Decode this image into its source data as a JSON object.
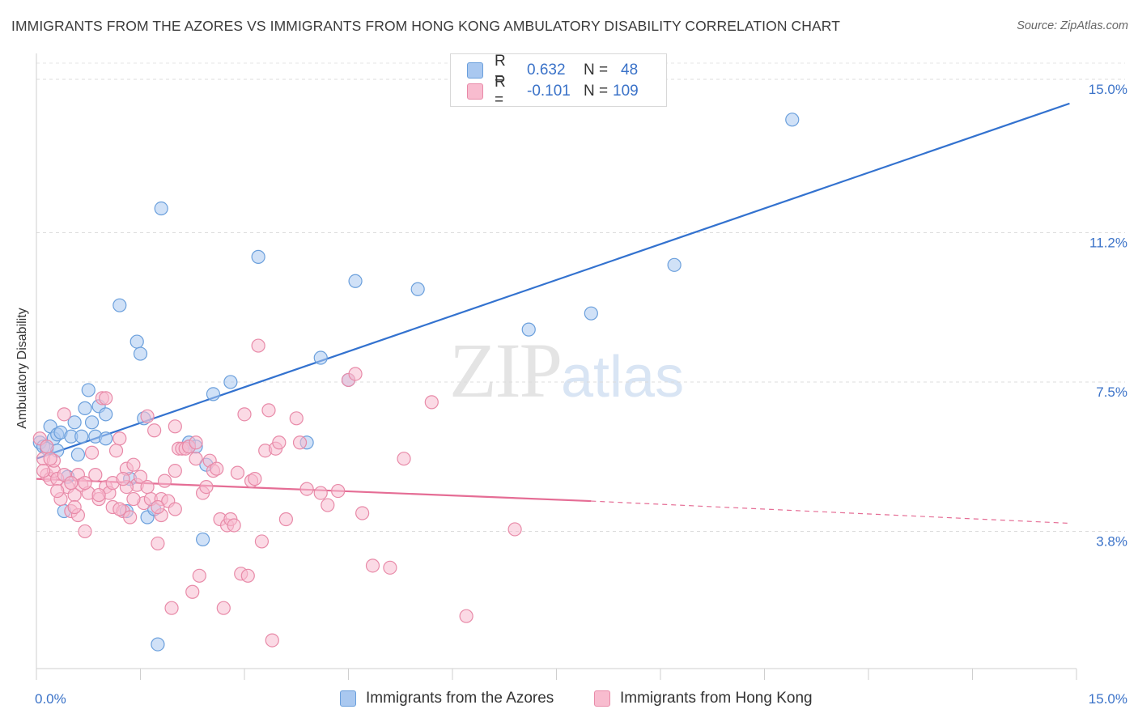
{
  "title": "IMMIGRANTS FROM THE AZORES VS IMMIGRANTS FROM HONG KONG AMBULATORY DISABILITY CORRELATION CHART",
  "source": "Source: ZipAtlas.com",
  "watermark": {
    "zip": "ZIP",
    "atlas": "atlas"
  },
  "legend": {
    "rows": [
      {
        "r_label": "R =",
        "r_value": "0.632",
        "n_label": "N =",
        "n_value": "48",
        "color": "#a9c8f0",
        "border": "#6a9fdc"
      },
      {
        "r_label": "R =",
        "r_value": "-0.101",
        "n_label": "N =",
        "n_value": "109",
        "color": "#f8bccf",
        "border": "#e88aa8"
      }
    ]
  },
  "bottom_legend": [
    {
      "label": "Immigrants from the Azores",
      "color": "#a9c8f0",
      "border": "#6a9fdc"
    },
    {
      "label": "Immigrants from Hong Kong",
      "color": "#f8bccf",
      "border": "#e88aa8"
    }
  ],
  "chart_data": {
    "type": "scatter",
    "title": "IMMIGRANTS FROM THE AZORES VS IMMIGRANTS FROM HONG KONG AMBULATORY DISABILITY CORRELATION CHART",
    "xlabel": "",
    "ylabel": "Ambulatory Disability",
    "xlim": [
      0,
      15
    ],
    "ylim": [
      0.4,
      15.4
    ],
    "x_tick_labels": [
      "0.0%",
      "15.0%"
    ],
    "y_ticks": [
      3.8,
      7.5,
      11.2,
      15.0
    ],
    "y_tick_labels": [
      "3.8%",
      "7.5%",
      "11.2%",
      "15.0%"
    ],
    "grid": true,
    "series": [
      {
        "name": "Immigrants from the Azores",
        "color": "#6a9fdc",
        "fill": "#a9c8f0",
        "points": [
          [
            0.05,
            6.0
          ],
          [
            0.1,
            5.9
          ],
          [
            0.15,
            5.85
          ],
          [
            0.2,
            6.4
          ],
          [
            0.25,
            6.1
          ],
          [
            0.3,
            6.2
          ],
          [
            0.35,
            6.25
          ],
          [
            0.4,
            4.3
          ],
          [
            0.45,
            5.15
          ],
          [
            0.5,
            6.15
          ],
          [
            0.55,
            6.5
          ],
          [
            0.6,
            5.7
          ],
          [
            0.65,
            6.15
          ],
          [
            0.7,
            6.85
          ],
          [
            0.75,
            7.3
          ],
          [
            0.8,
            6.5
          ],
          [
            0.85,
            6.15
          ],
          [
            0.9,
            6.9
          ],
          [
            1.0,
            6.1
          ],
          [
            1.2,
            9.4
          ],
          [
            1.3,
            4.3
          ],
          [
            1.35,
            5.1
          ],
          [
            1.45,
            8.5
          ],
          [
            1.5,
            8.2
          ],
          [
            1.55,
            6.6
          ],
          [
            1.6,
            4.15
          ],
          [
            1.7,
            4.35
          ],
          [
            1.8,
            11.8
          ],
          [
            2.2,
            6.0
          ],
          [
            2.3,
            5.9
          ],
          [
            2.4,
            3.6
          ],
          [
            2.45,
            5.45
          ],
          [
            2.55,
            7.2
          ],
          [
            2.8,
            7.5
          ],
          [
            3.2,
            10.6
          ],
          [
            3.9,
            6.0
          ],
          [
            4.1,
            8.1
          ],
          [
            4.6,
            10.0
          ],
          [
            4.5,
            7.55
          ],
          [
            5.5,
            9.8
          ],
          [
            7.1,
            8.8
          ],
          [
            8.0,
            9.2
          ],
          [
            9.2,
            10.4
          ],
          [
            10.9,
            14.0
          ],
          [
            1.0,
            6.7
          ],
          [
            0.3,
            5.8
          ],
          [
            1.75,
            1.0
          ],
          [
            2.2,
            5.9
          ]
        ]
      },
      {
        "name": "Immigrants from Hong Kong",
        "color": "#e88aa8",
        "fill": "#f8bccf",
        "points": [
          [
            0.05,
            6.1
          ],
          [
            0.1,
            5.6
          ],
          [
            0.15,
            5.2
          ],
          [
            0.2,
            5.1
          ],
          [
            0.25,
            5.3
          ],
          [
            0.3,
            5.1
          ],
          [
            0.35,
            4.6
          ],
          [
            0.4,
            6.7
          ],
          [
            0.45,
            4.9
          ],
          [
            0.5,
            4.3
          ],
          [
            0.55,
            4.7
          ],
          [
            0.6,
            5.2
          ],
          [
            0.65,
            4.95
          ],
          [
            0.7,
            3.8
          ],
          [
            0.75,
            4.75
          ],
          [
            0.8,
            5.75
          ],
          [
            0.85,
            5.2
          ],
          [
            0.9,
            4.6
          ],
          [
            0.95,
            7.1
          ],
          [
            1.0,
            4.9
          ],
          [
            1.05,
            4.75
          ],
          [
            1.1,
            4.4
          ],
          [
            1.15,
            5.8
          ],
          [
            1.2,
            6.1
          ],
          [
            1.25,
            4.3
          ],
          [
            1.3,
            5.35
          ],
          [
            1.35,
            4.15
          ],
          [
            1.4,
            5.45
          ],
          [
            1.45,
            4.95
          ],
          [
            1.5,
            5.15
          ],
          [
            1.55,
            4.5
          ],
          [
            1.6,
            6.65
          ],
          [
            1.65,
            4.6
          ],
          [
            1.7,
            6.3
          ],
          [
            1.75,
            3.5
          ],
          [
            1.8,
            4.6
          ],
          [
            1.85,
            5.05
          ],
          [
            1.9,
            4.55
          ],
          [
            1.95,
            1.9
          ],
          [
            2.0,
            6.4
          ],
          [
            2.05,
            5.85
          ],
          [
            2.1,
            5.85
          ],
          [
            2.15,
            5.85
          ],
          [
            2.2,
            5.9
          ],
          [
            2.25,
            2.3
          ],
          [
            2.3,
            6.0
          ],
          [
            2.35,
            2.7
          ],
          [
            2.4,
            4.75
          ],
          [
            2.45,
            4.9
          ],
          [
            2.5,
            5.55
          ],
          [
            2.55,
            5.3
          ],
          [
            2.6,
            5.35
          ],
          [
            2.65,
            4.1
          ],
          [
            2.7,
            1.9
          ],
          [
            2.75,
            3.95
          ],
          [
            2.8,
            4.1
          ],
          [
            2.85,
            3.95
          ],
          [
            2.9,
            5.25
          ],
          [
            2.95,
            2.75
          ],
          [
            3.0,
            6.7
          ],
          [
            3.05,
            2.7
          ],
          [
            3.1,
            5.05
          ],
          [
            3.15,
            5.1
          ],
          [
            3.2,
            8.4
          ],
          [
            3.25,
            3.55
          ],
          [
            3.3,
            5.8
          ],
          [
            3.35,
            6.8
          ],
          [
            3.4,
            1.1
          ],
          [
            3.45,
            5.85
          ],
          [
            3.6,
            4.1
          ],
          [
            3.75,
            6.6
          ],
          [
            3.8,
            6.0
          ],
          [
            3.9,
            4.85
          ],
          [
            4.1,
            4.75
          ],
          [
            4.2,
            4.45
          ],
          [
            4.35,
            4.8
          ],
          [
            4.5,
            7.55
          ],
          [
            4.6,
            7.7
          ],
          [
            4.7,
            4.25
          ],
          [
            4.85,
            2.95
          ],
          [
            5.1,
            2.9
          ],
          [
            5.3,
            5.6
          ],
          [
            5.7,
            7.0
          ],
          [
            6.2,
            1.7
          ],
          [
            6.9,
            3.85
          ],
          [
            1.0,
            7.1
          ],
          [
            0.6,
            4.2
          ],
          [
            0.15,
            5.9
          ],
          [
            0.25,
            5.55
          ],
          [
            0.4,
            5.2
          ],
          [
            1.1,
            5.0
          ],
          [
            1.3,
            4.9
          ],
          [
            1.6,
            4.9
          ],
          [
            2.0,
            4.35
          ],
          [
            1.2,
            4.35
          ],
          [
            0.7,
            5.0
          ],
          [
            0.9,
            4.7
          ],
          [
            1.4,
            4.6
          ],
          [
            1.8,
            4.2
          ],
          [
            2.3,
            5.6
          ],
          [
            0.5,
            5.0
          ],
          [
            1.25,
            5.1
          ],
          [
            1.75,
            4.4
          ],
          [
            0.55,
            4.4
          ],
          [
            2.0,
            5.3
          ],
          [
            3.5,
            6.0
          ],
          [
            0.1,
            5.3
          ],
          [
            0.3,
            4.8
          ],
          [
            0.2,
            5.6
          ]
        ]
      }
    ],
    "trendlines": [
      {
        "series": "Immigrants from the Azores",
        "x": [
          0.0,
          14.9
        ],
        "y": [
          5.6,
          14.4
        ]
      },
      {
        "series": "Immigrants from Hong Kong",
        "x": [
          0.0,
          8.0
        ],
        "y": [
          5.1,
          4.55
        ],
        "dashed_extension": [
          8.0,
          14.9
        ],
        "dashed_y": [
          4.55,
          4.0
        ]
      }
    ]
  }
}
